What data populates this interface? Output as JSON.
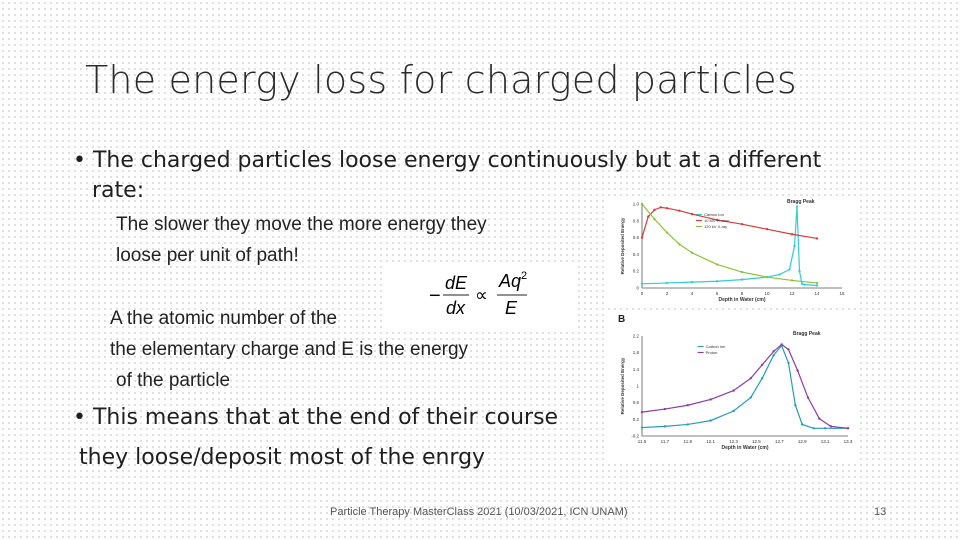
{
  "title": "The energy loss for charged particles",
  "bullets": [
    {
      "marker": "•",
      "line1": "The charged particles loose energy continuously but at a different",
      "line2": "rate:"
    },
    {
      "marker": "•",
      "line1": "This means that at the end of their course",
      "line2": "they loose/deposit most of the enrgy"
    }
  ],
  "sub1": {
    "line1": "The slower they move the more energy they",
    "line2": "loose per  unit of path!"
  },
  "sub2": {
    "line1": "A the atomic number of the",
    "line2": "the elementary charge and E is the energy",
    "line3": "of the particle"
  },
  "formula": {
    "minus": "−",
    "dE": "dE",
    "dx": "dx",
    "prop": "∝",
    "num": "Aq",
    "exp": "2",
    "den": "E"
  },
  "footer": "Particle Therapy MasterClass 2021 (10/03/2021, ICN UNAM)",
  "page_number": "13",
  "chart_data": [
    {
      "type": "line",
      "panel_label": "",
      "title": "Bragg Peak",
      "xlabel": "Depth in Water (cm)",
      "ylabel": "Relative Deposited Energy",
      "xlim": [
        0,
        16
      ],
      "ylim": [
        0,
        1.0
      ],
      "x_ticks": [
        "0",
        "2",
        "4",
        "6",
        "8",
        "10",
        "12",
        "14",
        "16"
      ],
      "y_ticks": [
        "0",
        "0.2",
        "0.4",
        "0.6",
        "0.8",
        "1.0"
      ],
      "series": [
        {
          "name": "Carbon Ion",
          "color": "#35c9d6",
          "x": [
            0,
            2,
            4,
            6,
            8,
            10,
            11,
            11.8,
            12.2,
            12.4,
            12.6,
            12.8,
            13,
            14
          ],
          "y": [
            0.05,
            0.06,
            0.07,
            0.08,
            0.1,
            0.13,
            0.16,
            0.22,
            0.5,
            0.97,
            0.2,
            0.05,
            0.04,
            0.03
          ]
        },
        {
          "name": "10 MV Photon",
          "color": "#cf3f3f",
          "x": [
            0,
            0.5,
            1,
            1.5,
            2,
            3,
            4,
            6,
            8,
            10,
            12,
            14
          ],
          "y": [
            0.6,
            0.85,
            0.93,
            0.96,
            0.95,
            0.92,
            0.88,
            0.81,
            0.76,
            0.7,
            0.64,
            0.59
          ]
        },
        {
          "name": "120 kV X-ray",
          "color": "#8fbf3e",
          "x": [
            0,
            1,
            2,
            3,
            4,
            6,
            8,
            10,
            12,
            14
          ],
          "y": [
            1.0,
            0.82,
            0.66,
            0.52,
            0.42,
            0.28,
            0.19,
            0.13,
            0.09,
            0.06
          ]
        }
      ]
    },
    {
      "type": "line",
      "panel_label": "B",
      "title": "Bragg Peak",
      "xlabel": "Depth in Water (cm)",
      "ylabel": "Relative Deposited Energy",
      "xlim": [
        11.5,
        13.3
      ],
      "ylim": [
        -0.2,
        2.4
      ],
      "x_ticks": [
        "11.5",
        "11.7",
        "11.9",
        "12.1",
        "12.3",
        "12.5",
        "12.7",
        "12.9",
        "13.1",
        "13.3"
      ],
      "y_ticks": [
        "-0.2",
        "0.2",
        "0.6",
        "1",
        "1.4",
        "1.8",
        "2.2"
      ],
      "series": [
        {
          "name": "Carbon Ion",
          "color": "#2b9bb0",
          "x": [
            11.5,
            11.7,
            11.9,
            12.1,
            12.3,
            12.45,
            12.55,
            12.65,
            12.72,
            12.78,
            12.84,
            12.9,
            13.0,
            13.1,
            13.3
          ],
          "y": [
            0.02,
            0.05,
            0.1,
            0.2,
            0.45,
            0.8,
            1.3,
            1.9,
            2.15,
            1.7,
            0.6,
            0.1,
            0.0,
            0.0,
            0.0
          ]
        },
        {
          "name": "Proton",
          "color": "#8a3fa0",
          "x": [
            11.5,
            11.7,
            11.9,
            12.1,
            12.3,
            12.45,
            12.55,
            12.65,
            12.72,
            12.78,
            12.86,
            12.95,
            13.05,
            13.15,
            13.3
          ],
          "y": [
            0.42,
            0.5,
            0.6,
            0.75,
            0.98,
            1.3,
            1.65,
            2.0,
            2.18,
            2.05,
            1.5,
            0.8,
            0.25,
            0.05,
            0.0
          ]
        }
      ]
    }
  ]
}
